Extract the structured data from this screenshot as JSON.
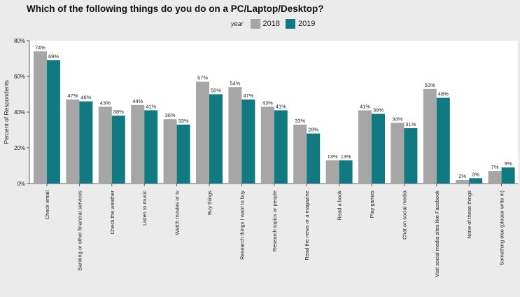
{
  "chart_data": {
    "type": "bar",
    "title": "Which of the following things do you do on a PC/Laptop/Desktop?",
    "legend_title": "year",
    "ylabel": "Percent of Respondents",
    "xlabel": "",
    "ylim": [
      0,
      80
    ],
    "yticks": [
      0,
      20,
      40,
      60,
      80
    ],
    "ytick_labels": [
      "0%",
      "20%",
      "40%",
      "60%",
      "80%"
    ],
    "categories": [
      "Check email",
      "Banking or other financial services",
      "Check the weather",
      "Listen to music",
      "Watch movies or tv",
      "Buy things",
      "Research things I want to buy",
      "Research topics or people",
      "Read the news or a magazine",
      "Read a book",
      "Play games",
      "Chat on social media",
      "Visit social media sites like Facebook",
      "None of these things",
      "Something else (please write in)"
    ],
    "series": [
      {
        "name": "2018",
        "color": "#a6a6a6",
        "values": [
          74,
          47,
          43,
          44,
          36,
          57,
          54,
          43,
          33,
          13,
          41,
          34,
          53,
          2,
          7
        ]
      },
      {
        "name": "2019",
        "color": "#0f7a82",
        "values": [
          69,
          46,
          38,
          41,
          33,
          50,
          47,
          41,
          28,
          13,
          39,
          31,
          48,
          3,
          9
        ]
      }
    ]
  }
}
